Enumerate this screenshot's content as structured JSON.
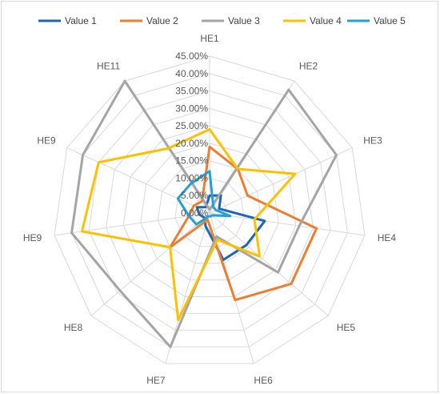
{
  "chart_data": {
    "type": "radar",
    "categories": [
      "HE1",
      "HE2",
      "HE3",
      "HE4",
      "HE5",
      "HE6",
      "HE7",
      "HE8",
      "HE9",
      "HE9",
      "HE11"
    ],
    "rticks": [
      "0.00%",
      "5.00%",
      "10.00%",
      "15.00%",
      "20.00%",
      "25.00%",
      "30.00%",
      "35.00%",
      "40.00%",
      "45.00%"
    ],
    "rlim": [
      0,
      45
    ],
    "grid": true,
    "legend_position": "top",
    "series": [
      {
        "name": "Value 1",
        "color": "#1f66b5",
        "values": [
          5,
          6,
          3,
          16,
          14,
          14,
          4,
          2,
          3,
          4,
          2
        ]
      },
      {
        "name": "Value 2",
        "color": "#ed7d31",
        "values": [
          19,
          15,
          12,
          31,
          31,
          26,
          2,
          15,
          6,
          5,
          4
        ]
      },
      {
        "name": "Value 3",
        "color": "#a5a5a5",
        "values": [
          1,
          42,
          40,
          26,
          26,
          7,
          40,
          34,
          40,
          40,
          45
        ]
      },
      {
        "name": "Value 4",
        "color": "#ffc000",
        "values": [
          24,
          15,
          27,
          13,
          19,
          8,
          32,
          15,
          37,
          35,
          22
        ]
      },
      {
        "name": "Value 5",
        "color": "#23a0d6",
        "values": [
          12,
          2,
          2,
          6,
          1,
          1,
          1,
          5,
          6,
          10,
          10
        ]
      }
    ]
  }
}
